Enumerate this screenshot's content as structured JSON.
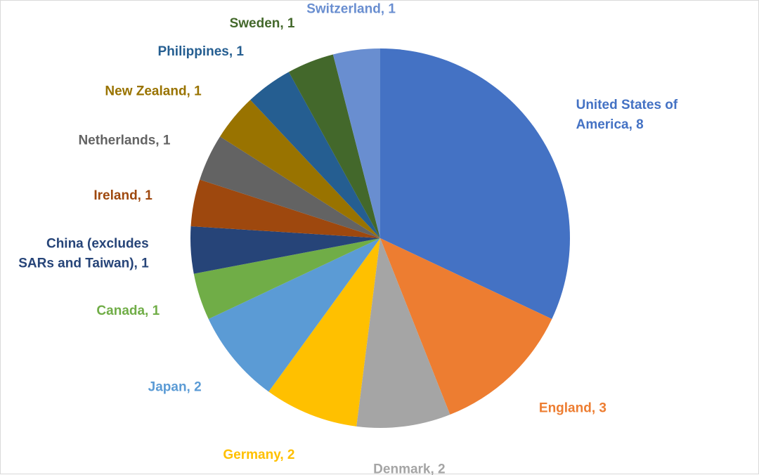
{
  "chart_data": {
    "type": "pie",
    "title": "",
    "slices": [
      {
        "label": "United States of America",
        "value": 8,
        "color": "#4472C4",
        "label_lines": [
          "United States of",
          "America, 8"
        ]
      },
      {
        "label": "England",
        "value": 3,
        "color": "#ED7D31",
        "label_lines": [
          "England, 3"
        ]
      },
      {
        "label": "Denmark",
        "value": 2,
        "color": "#A5A5A5",
        "label_lines": [
          "Denmark, 2"
        ]
      },
      {
        "label": "Germany",
        "value": 2,
        "color": "#FFC000",
        "label_lines": [
          "Germany, 2"
        ]
      },
      {
        "label": "Japan",
        "value": 2,
        "color": "#5B9BD5",
        "label_lines": [
          "Japan, 2"
        ]
      },
      {
        "label": "Canada",
        "value": 1,
        "color": "#70AD47",
        "label_lines": [
          "Canada, 1"
        ]
      },
      {
        "label": "China (excludes SARs and Taiwan)",
        "value": 1,
        "color": "#264478",
        "label_lines": [
          "China (excludes",
          "SARs and Taiwan), 1"
        ]
      },
      {
        "label": "Ireland",
        "value": 1,
        "color": "#9E480E",
        "label_lines": [
          "Ireland, 1"
        ]
      },
      {
        "label": "Netherlands",
        "value": 1,
        "color": "#636363",
        "label_lines": [
          "Netherlands, 1"
        ]
      },
      {
        "label": "New Zealand",
        "value": 1,
        "color": "#997300",
        "label_lines": [
          "New Zealand, 1"
        ]
      },
      {
        "label": "Philippines",
        "value": 1,
        "color": "#255E91",
        "label_lines": [
          "Philippines, 1"
        ]
      },
      {
        "label": "Sweden",
        "value": 1,
        "color": "#43682B",
        "label_lines": [
          "Sweden, 1"
        ]
      },
      {
        "label": "Switzerland",
        "value": 1,
        "color": "#698ED0",
        "label_lines": [
          "Switzerland, 1"
        ]
      }
    ],
    "start_angle": "top",
    "direction": "clockwise",
    "legend": "none"
  }
}
